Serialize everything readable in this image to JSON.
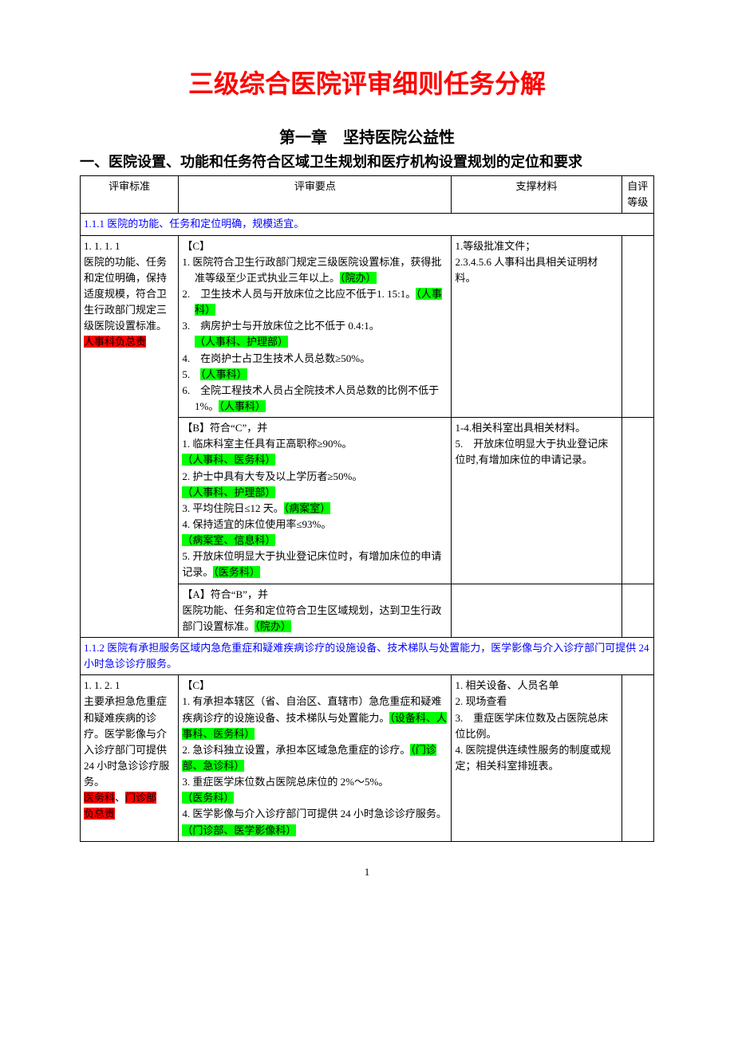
{
  "title": "三级综合医院评审细则任务分解",
  "chapter": "第一章　坚持医院公益性",
  "section": "一、医院设置、功能和任务符合区域卫生规划和医疗机构设置规划的定位和要求",
  "headers": {
    "col1": "评审标准",
    "col2": "评审要点",
    "col3": "支撑材料",
    "col4": "自评等级"
  },
  "r1_1_1": "1.1.1 医院的功能、任务和定位明确，规模适宜。",
  "r1_1_1_1": {
    "std_no": "1. 1. 1. 1",
    "std_l1": "医院的功能、任务和定位明确，保持适度规模，符合卫生行政部门规定三级医院设置标准。",
    "std_resp": "人事科负总责",
    "c_label": "【C】",
    "c1a": "1. 医院符合卫生行政部门规定三级医院设置标准，获得批准等级至少正式执业三年以上。",
    "c1b": "（院办）",
    "c2a": "2.　卫生技术人员与开放床位之比应不低于1. 15:1。",
    "c2b": "（人事科）",
    "c3a": "3.　病房护士与开放床位之比不低于 0.4:1。",
    "c3b": "（人事科、护理部）",
    "c4a": "4.　在岗护士占卫生技术人员总数≥50%。",
    "c5a": "5.",
    "c5b": "（人事科）",
    "c6a": "6.　全院工程技术人员占全院技术人员总数的比例不低于 1%。",
    "c6b": "（人事科）",
    "c_mat1": "1.等级批准文件；",
    "c_mat2": "2.3.4.5.6 人事科出具相关证明材料。",
    "b_label": "【B】符合“C”，并",
    "b1a": "1. 临床科室主任具有正高职称≥90%。",
    "b1b": "（人事科、医务科）",
    "b2a": "2. 护士中具有大专及以上学历者≥50%。",
    "b2b": "（人事科、护理部）",
    "b3a": "3. 平均住院日≤12 天。",
    "b3b": "（病案室）",
    "b4a": "4. 保持适宜的床位使用率≤93%。",
    "b4b": "（病案室、信息科）",
    "b5a": "5. 开放床位明显大于执业登记床位时，有增加床位的申请记录。",
    "b5b": "（医务科）",
    "b_mat1": "1-4.相关科室出具相关材料。",
    "b_mat2": "5.　开放床位明显大于执业登记床位时,有增加床位的申请记录。",
    "a_label": "【A】符合“B”，并",
    "a1a": "医院功能、任务和定位符合卫生区域规划，达到卫生行政部门设置标准。",
    "a1b": "（院办）"
  },
  "r1_1_2": "1.1.2 医院有承担服务区域内急危重症和疑难疾病诊疗的设施设备、技术梯队与处置能力，医学影像与介入诊疗部门可提供 24 小时急诊诊疗服务。",
  "r1_1_2_1": {
    "std_no": "1. 1. 2. 1",
    "std_l1": "主要承担急危重症和疑难疾病的诊疗。医学影像与介入诊疗部门可提供24 小时急诊诊疗服务。",
    "std_resp1": "医务科",
    "std_resp_sep": "、",
    "std_resp2": "门诊部",
    "std_resp3": "负总责",
    "c_label": "【C】",
    "c1a": "1. 有承担本辖区（省、自治区、直辖市）急危重症和疑难疾病诊疗的设施设备、技术梯队与处置能力。",
    "c1b": "（设备科、人事科、医务科）",
    "c2a": "2. 急诊科独立设置，承担本区域急危重症的诊疗。",
    "c2b": "（门诊部、急诊科）",
    "c3a": "3. 重症医学床位数占医院总床位的 2%～5%。",
    "c3b": "（医务科）",
    "c4a": "4. 医学影像与介入诊疗部门可提供 24 小时急诊诊疗服务。",
    "c4b": "（门诊部、医学影像科）",
    "mat1": "1. 相关设备、人员名单",
    "mat2": "2. 现场查看",
    "mat3": "3.　重症医学床位数及占医院总床位比例。",
    "mat4": "4. 医院提供连续性服务的制度或规定；相关科室排班表。"
  },
  "page_num": "1"
}
